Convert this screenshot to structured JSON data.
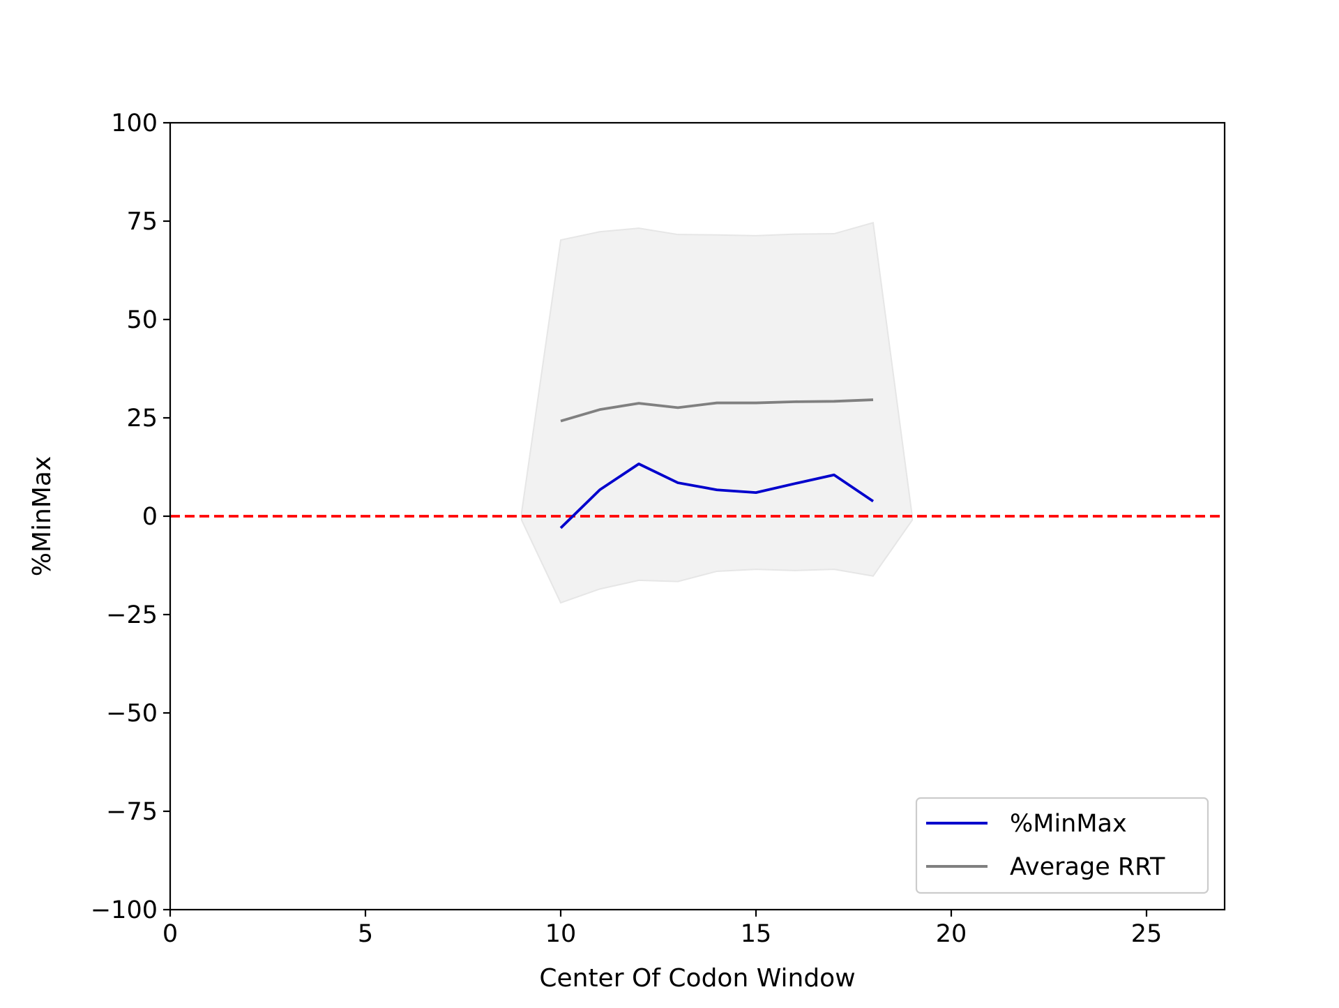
{
  "chart_data": {
    "type": "line",
    "xlabel": "Center Of Codon Window",
    "ylabel": "%MinMax",
    "xlim": [
      0,
      27
    ],
    "ylim": [
      -100,
      100
    ],
    "xticks": [
      0,
      5,
      10,
      15,
      20,
      25
    ],
    "yticks": [
      100,
      75,
      50,
      25,
      0,
      -25,
      -50,
      -75,
      -100
    ],
    "xtick_labels": [
      "0",
      "5",
      "10",
      "15",
      "20",
      "25"
    ],
    "ytick_labels": [
      "100",
      "75",
      "50",
      "25",
      "0",
      "−25",
      "−50",
      "−75",
      "−100"
    ],
    "grid": false,
    "legend_position": "lower-right",
    "x": [
      10,
      11,
      12,
      13,
      14,
      15,
      16,
      17,
      18
    ],
    "series": [
      {
        "name": "%MinMax",
        "color": "#0000cc",
        "values": [
          -3,
          6.7,
          13.3,
          8.5,
          6.7,
          6,
          8.3,
          10.5,
          3.8
        ]
      },
      {
        "name": "Average RRT",
        "color": "#808080",
        "values": [
          24.2,
          27.1,
          28.7,
          27.6,
          28.8,
          28.8,
          29.1,
          29.2,
          29.6
        ]
      }
    ],
    "band": {
      "color": "#f2f2f2",
      "x": [
        9,
        10,
        11,
        12,
        13,
        14,
        15,
        16,
        17,
        18,
        19
      ],
      "upper": [
        1,
        70.2,
        72.3,
        73.2,
        71.6,
        71.5,
        71.3,
        71.7,
        71.8,
        74.6,
        0
      ],
      "lower": [
        -1,
        -22,
        -18.5,
        -16.3,
        -16.6,
        -14,
        -13.5,
        -13.8,
        -13.5,
        -15.2,
        -1
      ]
    },
    "reference_line": {
      "y": 0,
      "color": "#ff0000",
      "style": "dashed"
    }
  }
}
